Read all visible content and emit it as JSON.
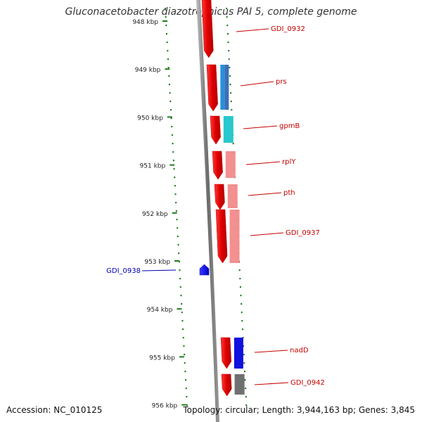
{
  "title": "Gluconacetobacter diazotrophicus PAI 5, complete genome",
  "footer": {
    "accession": "Accession: NC_010125",
    "topology": "Topology: circular; Length: 3,944,163 bp; Genes: 3,845"
  },
  "colors": {
    "tick": "#1e7a1e",
    "gene_forward": "#e00000",
    "gene_reverse": "#1010e0",
    "label_forward": "#c40000",
    "label_reverse": "#0000b0",
    "cog_blue": "#2a8fd8",
    "cog_cyan": "#28c8cc",
    "cog_pink": "#f28a8a",
    "cog_gray": "#707070"
  },
  "ticks": [
    {
      "label": "948 kbp"
    },
    {
      "label": "949 kbp"
    },
    {
      "label": "950 kbp"
    },
    {
      "label": "951 kbp"
    },
    {
      "label": "952 kbp"
    },
    {
      "label": "953 kbp"
    },
    {
      "label": "954 kbp"
    },
    {
      "label": "955 kbp"
    },
    {
      "label": "956 kbp"
    }
  ],
  "genes": [
    {
      "name": "GDI_0932",
      "strand": "forward",
      "cog": null
    },
    {
      "name": "prs",
      "strand": "forward",
      "cog": "blue"
    },
    {
      "name": "gpmB",
      "strand": "forward",
      "cog": "cyan"
    },
    {
      "name": "rplY",
      "strand": "forward",
      "cog": "pink"
    },
    {
      "name": "pth",
      "strand": "forward",
      "cog": "pink"
    },
    {
      "name": "GDI_0937",
      "strand": "forward",
      "cog": "pink"
    },
    {
      "name": "GDI_0938",
      "strand": "reverse",
      "cog": null
    },
    {
      "name": "nadD",
      "strand": "forward",
      "cog": "blue"
    },
    {
      "name": "GDI_0942",
      "strand": "forward",
      "cog": "gray"
    }
  ]
}
